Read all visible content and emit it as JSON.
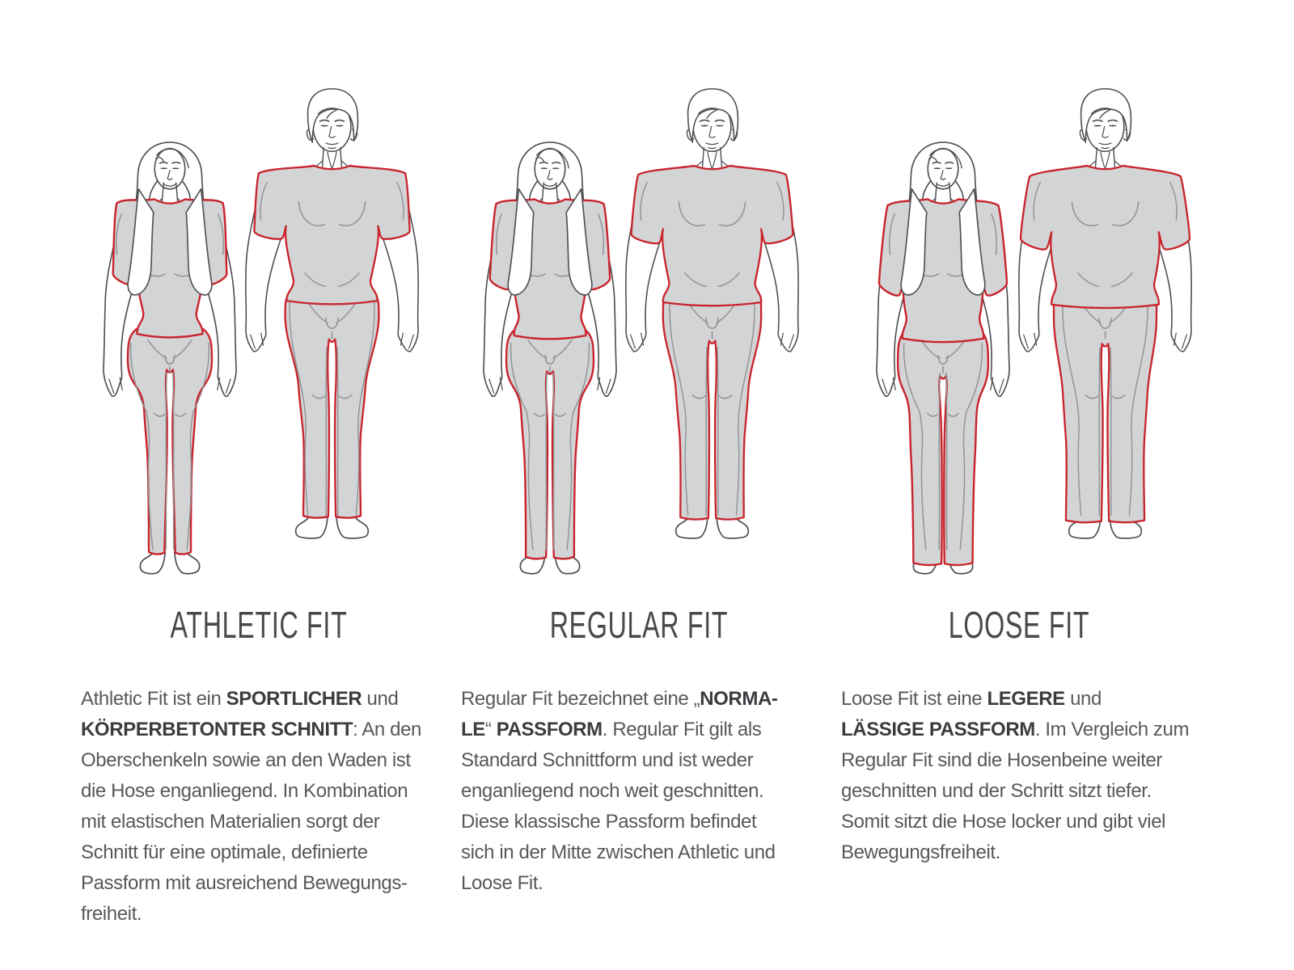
{
  "page": {
    "background": "#ffffff",
    "language": "de"
  },
  "colors": {
    "accent_red": "#c9242c",
    "garment_gray": "#d3d4d6",
    "body_line_gray": "#4e4f53",
    "detail_gray": "#8f9194",
    "heading_gray": "#48494d",
    "text_gray": "#57585c",
    "bold_gray": "#3b3c40"
  },
  "columns": [
    {
      "id": "athletic",
      "fit": "athletic",
      "title": "ATHLETIC FIT",
      "figures": {
        "woman": "woman-figure-athletic-fit",
        "man": "man-figure-athletic-fit"
      },
      "description_lines": [
        [
          {
            "t": "Athletic Fit ist ein ",
            "b": false
          },
          {
            "t": "SPORTLICHER",
            "b": true
          },
          {
            "t": " und",
            "b": false
          }
        ],
        [
          {
            "t": "KÖRPERBETONTER SCHNITT",
            "b": true
          },
          {
            "t": ": An den",
            "b": false
          }
        ],
        [
          {
            "t": "Oberschenkeln sowie an den Waden ist",
            "b": false
          }
        ],
        [
          {
            "t": "die Hose enganliegend. In Kombination",
            "b": false
          }
        ],
        [
          {
            "t": "mit elastischen Materialien sorgt der",
            "b": false
          }
        ],
        [
          {
            "t": "Schnitt für eine optimale, definierte",
            "b": false
          }
        ],
        [
          {
            "t": "Passform mit ausreichend Bewegungs-",
            "b": false
          }
        ],
        [
          {
            "t": "freiheit.",
            "b": false
          }
        ]
      ]
    },
    {
      "id": "regular",
      "fit": "regular",
      "title": "REGULAR FIT",
      "figures": {
        "woman": "woman-figure-regular-fit",
        "man": "man-figure-regular-fit"
      },
      "description_lines": [
        [
          {
            "t": "Regular Fit bezeichnet eine „",
            "b": false
          },
          {
            "t": "NORMA-",
            "b": true
          }
        ],
        [
          {
            "t": "LE",
            "b": true
          },
          {
            "t": "“ ",
            "b": false
          },
          {
            "t": "PASSFORM",
            "b": true
          },
          {
            "t": ". Regular Fit gilt als",
            "b": false
          }
        ],
        [
          {
            "t": "Standard Schnittform und ist weder",
            "b": false
          }
        ],
        [
          {
            "t": "enganliegend noch weit geschnitten.",
            "b": false
          }
        ],
        [
          {
            "t": "Diese klassische Passform befindet",
            "b": false
          }
        ],
        [
          {
            "t": "sich in der Mitte zwischen Athletic und",
            "b": false
          }
        ],
        [
          {
            "t": "Loose Fit.",
            "b": false
          }
        ]
      ]
    },
    {
      "id": "loose",
      "fit": "loose",
      "title": "LOOSE FIT",
      "figures": {
        "woman": "woman-figure-loose-fit",
        "man": "man-figure-loose-fit"
      },
      "description_lines": [
        [
          {
            "t": "Loose Fit ist eine ",
            "b": false
          },
          {
            "t": "LEGERE",
            "b": true
          },
          {
            "t": " und",
            "b": false
          }
        ],
        [
          {
            "t": "LÄSSIGE PASSFORM",
            "b": true
          },
          {
            "t": ". Im Vergleich zum",
            "b": false
          }
        ],
        [
          {
            "t": "Regular Fit sind die Hosenbeine weiter",
            "b": false
          }
        ],
        [
          {
            "t": "geschnitten und der Schritt sitzt tiefer.",
            "b": false
          }
        ],
        [
          {
            "t": "Somit sitzt die Hose locker und gibt viel",
            "b": false
          }
        ],
        [
          {
            "t": "Bewegungsfreiheit.",
            "b": false
          }
        ]
      ]
    }
  ]
}
